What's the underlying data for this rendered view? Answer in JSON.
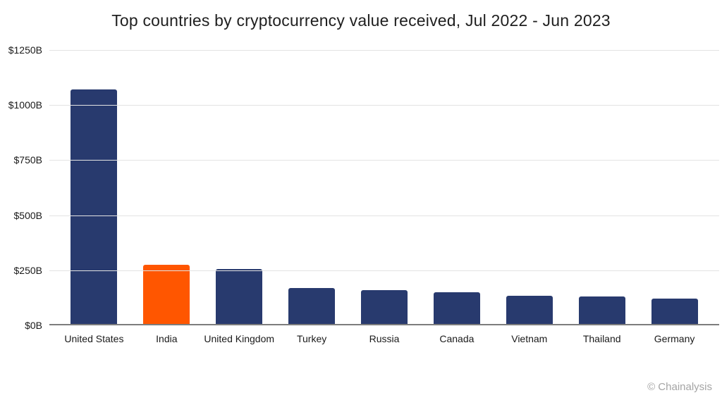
{
  "chart_data": {
    "type": "bar",
    "title": "Top countries by cryptocurrency value received, Jul 2022 - Jun 2023",
    "categories": [
      "United States",
      "India",
      "United Kingdom",
      "Turkey",
      "Russia",
      "Canada",
      "Vietnam",
      "Thailand",
      "Germany"
    ],
    "values": [
      1070,
      270,
      250,
      165,
      155,
      145,
      130,
      125,
      115
    ],
    "unit": "USD billions",
    "xlabel": "",
    "ylabel": "",
    "ylim": [
      0,
      1250
    ],
    "y_ticks": [
      {
        "label": "$0B",
        "value": 0
      },
      {
        "label": "$250B",
        "value": 250
      },
      {
        "label": "$500B",
        "value": 500
      },
      {
        "label": "$750B",
        "value": 750
      },
      {
        "label": "$1000B",
        "value": 1000
      },
      {
        "label": "$1250B",
        "value": 1250
      }
    ],
    "highlight_index": 1,
    "grid": "horizontal",
    "legend": "none",
    "colors": {
      "bar": "#283a6e",
      "highlight": "#ff5600",
      "gridline": "#e3e3e3",
      "axis_line": "#7d7d7d",
      "title_text": "#1f1f1f",
      "tick_text": "#1a1a1a",
      "attribution_text": "#a4a4a4"
    }
  },
  "attribution": {
    "symbol": "©",
    "label": "Chainalysis"
  }
}
